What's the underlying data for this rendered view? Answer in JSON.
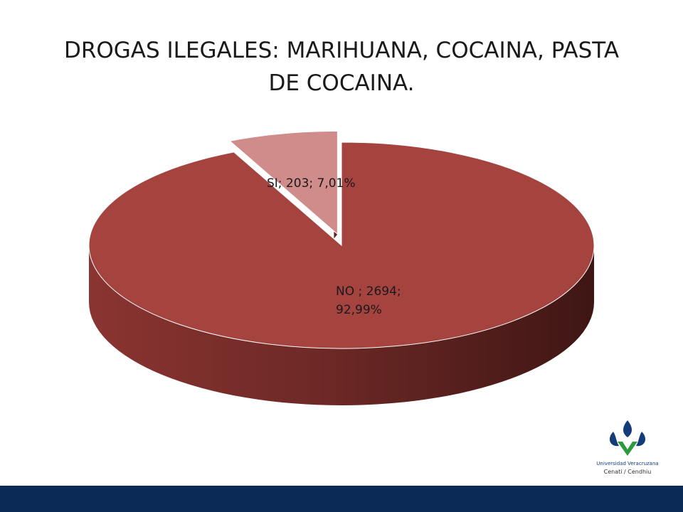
{
  "chart_data": {
    "type": "pie",
    "title": "DROGAS ILEGALES: MARIHUANA, COCAINA, PASTA DE COCAINA.",
    "categories": [
      "SI",
      "NO"
    ],
    "values": [
      203,
      2694
    ],
    "value_labels": [
      "SI; 203; 7,01%",
      "NO ; 2694; 92,99%"
    ],
    "colors": [
      "#d08c8a",
      "#a5433f"
    ]
  },
  "footer": {
    "institution": "Universidad Veracruzana",
    "unit": "Cenati / Cendhiu"
  }
}
